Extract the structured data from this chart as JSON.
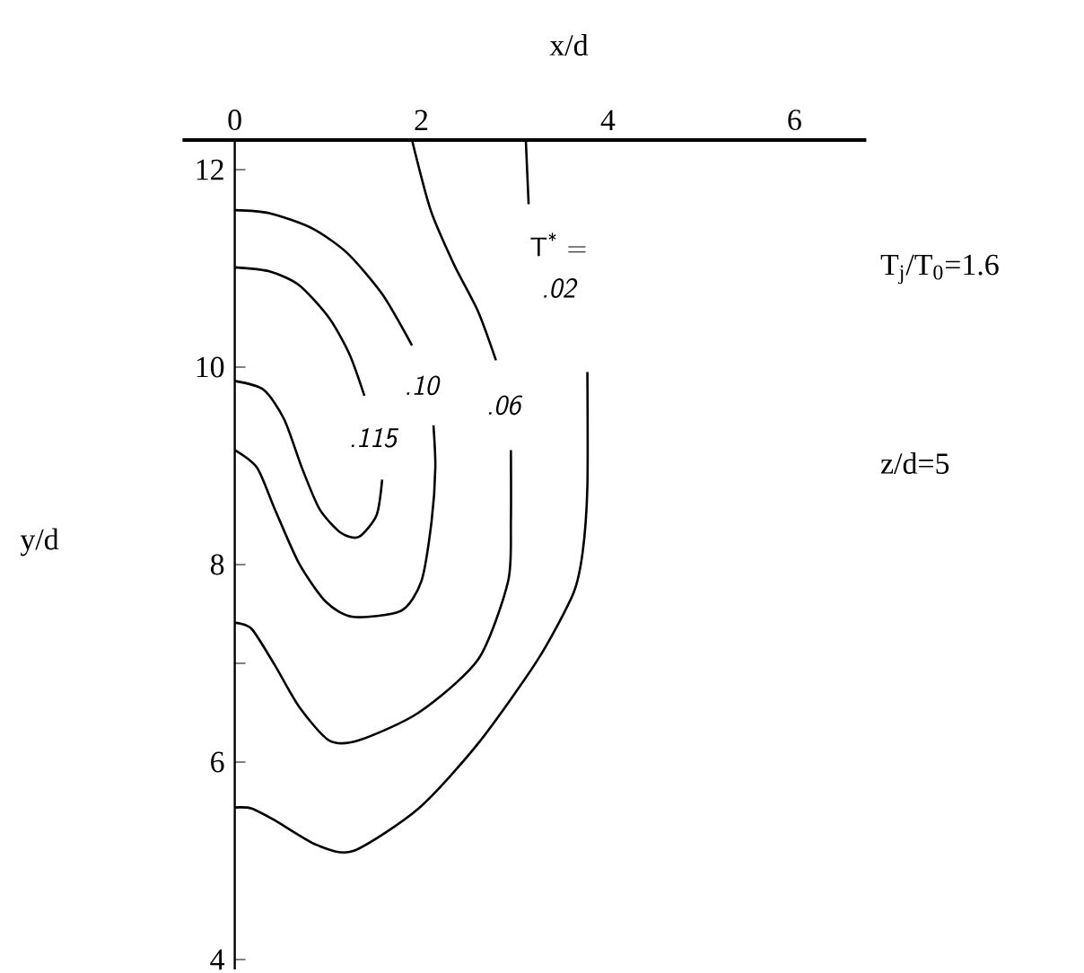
{
  "chart_data": {
    "type": "line",
    "xlabel": "x/d",
    "ylabel": "y/d",
    "annotations": [
      "T$^{*}$ =",
      "T$_{j}$/T$_{0}$=1.6",
      "z/d=5"
    ],
    "xlim": [
      -0.56,
      6.77
    ],
    "ylim": [
      3.9,
      12.3
    ],
    "xticks": [
      0,
      2,
      4,
      6
    ],
    "yticks": [
      4,
      6,
      {
        "value": 7,
        "label": null
      },
      8,
      10,
      12
    ],
    "series": [
      {
        "name": ".115",
        "color": "#000000",
        "x": [
          0,
          0.37,
          0.69,
          1.01,
          1.23,
          1.39,
          1.48,
          1.58,
          1.52,
          1.33,
          1.14,
          0.91,
          0.72,
          0.53,
          0.31,
          0
        ],
        "values": [
          11.01,
          10.97,
          10.83,
          10.5,
          10.13,
          9.71,
          null,
          8.86,
          8.5,
          8.28,
          8.32,
          8.56,
          8.98,
          9.47,
          9.77,
          9.86
        ]
      },
      {
        "name": ".10",
        "color": "#000000",
        "x": [
          0,
          0.37,
          0.82,
          1.2,
          1.58,
          1.9,
          2.0,
          2.13,
          2.15,
          2.11,
          2.0,
          1.78,
          1.27,
          0.98,
          0.69,
          0.43,
          0.24,
          0
        ],
        "values": [
          11.59,
          11.56,
          11.41,
          11.16,
          10.74,
          10.22,
          null,
          9.41,
          8.98,
          8.44,
          7.83,
          7.53,
          7.47,
          7.62,
          8.01,
          8.56,
          8.98,
          9.16
        ]
      },
      {
        "name": ".06",
        "color": "#000000",
        "x": [
          1.9,
          2.1,
          2.35,
          2.61,
          2.8,
          2.88,
          2.96,
          2.96,
          2.93,
          2.61,
          1.97,
          1.33,
          1.01,
          0.69,
          0.43,
          0.18,
          0
        ],
        "values": [
          12.3,
          11.59,
          11.04,
          10.56,
          10.07,
          null,
          9.16,
          8.44,
          7.83,
          7.04,
          6.5,
          6.22,
          6.22,
          6.56,
          6.98,
          7.35,
          7.41
        ]
      },
      {
        "name": ".02",
        "color": "#000000",
        "x": [
          3.12,
          3.15,
          3.47,
          3.78,
          3.78,
          3.73,
          3.63,
          3.25,
          2.61,
          1.97,
          1.27,
          0.88,
          0.43,
          0.18,
          0
        ],
        "values": [
          12.3,
          11.65,
          null,
          9.95,
          8.79,
          8.13,
          7.71,
          7.04,
          6.19,
          5.53,
          5.1,
          5.16,
          5.41,
          5.53,
          5.54
        ]
      }
    ]
  }
}
